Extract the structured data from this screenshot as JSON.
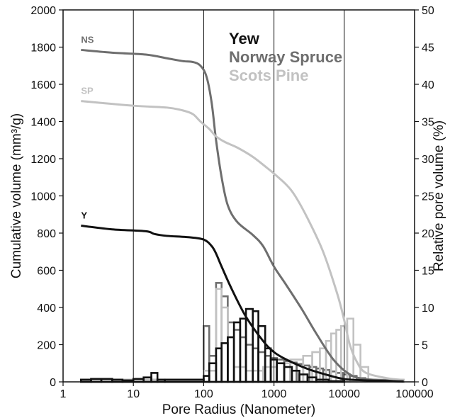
{
  "chart_data": {
    "type": "line",
    "xlabel": "Pore Radius (Nanometer)",
    "ylabel": "Cumulative volume (mm³/g)",
    "y2label": "Relative pore volume (%)",
    "xscale": "log",
    "xlim": [
      1,
      100000
    ],
    "ylim": [
      0,
      2000
    ],
    "y2lim": [
      0,
      50
    ],
    "x_ticks": [
      "1",
      "10",
      "100",
      "1000",
      "10000",
      "100000"
    ],
    "y_ticks": [
      "0",
      "200",
      "400",
      "600",
      "800",
      "1000",
      "1200",
      "1400",
      "1600",
      "1800",
      "2000"
    ],
    "y2_ticks": [
      "0",
      "5",
      "10",
      "15",
      "20",
      "25",
      "30",
      "35",
      "40",
      "45",
      "50"
    ],
    "grid": "vertical lines at 10, 100, 1000, 10000",
    "legend": {
      "position": "top-right",
      "entries": [
        {
          "label": "Yew",
          "color": "#111111"
        },
        {
          "label": "Norway Spruce",
          "color": "#6e6e6e"
        },
        {
          "label": "Scots Pine",
          "color": "#c2c2c2"
        }
      ]
    },
    "curves": [
      {
        "label": "NS",
        "color": "#6e6e6e",
        "x": [
          1.8,
          5,
          15,
          30,
          50,
          70,
          90,
          110,
          130,
          150,
          180,
          220,
          300,
          500,
          700,
          1000,
          1500,
          2500,
          4000,
          7000,
          12000,
          20000,
          50000,
          70000
        ],
        "y": [
          1785,
          1770,
          1760,
          1740,
          1725,
          1720,
          1700,
          1640,
          1500,
          1300,
          1100,
          950,
          860,
          790,
          730,
          620,
          520,
          390,
          260,
          120,
          40,
          15,
          8,
          5
        ]
      },
      {
        "label": "SP",
        "color": "#c2c2c2",
        "x": [
          1.8,
          10,
          30,
          50,
          70,
          90,
          120,
          150,
          200,
          300,
          500,
          800,
          1000,
          1500,
          2000,
          3000,
          5000,
          8000,
          10000,
          12000,
          15000,
          20000,
          40000,
          70000
        ],
        "y": [
          1510,
          1485,
          1475,
          1460,
          1440,
          1400,
          1360,
          1320,
          1290,
          1260,
          1210,
          1150,
          1120,
          1060,
          1000,
          880,
          700,
          470,
          330,
          200,
          110,
          50,
          20,
          10
        ]
      },
      {
        "label": "Y",
        "color": "#111111",
        "x": [
          1.8,
          5,
          15,
          20,
          30,
          60,
          100,
          130,
          150,
          180,
          250,
          400,
          700,
          1000,
          1500,
          3000,
          6000,
          10000,
          20000,
          50000,
          70000
        ],
        "y": [
          840,
          820,
          810,
          795,
          785,
          778,
          765,
          730,
          690,
          620,
          500,
          350,
          220,
          160,
          120,
          70,
          35,
          15,
          8,
          4,
          2
        ]
      }
    ],
    "histograms": [
      {
        "series": "Norway Spruce",
        "color": "#6e6e6e",
        "bins": [
          {
            "x0": 1.8,
            "x1": 100,
            "y": 0.3
          },
          {
            "x0": 100,
            "x1": 120,
            "y": 7.5
          },
          {
            "x0": 120,
            "x1": 150,
            "y": 3.5
          },
          {
            "x0": 150,
            "x1": 180,
            "y": 13.3
          },
          {
            "x0": 180,
            "x1": 220,
            "y": 11.5
          },
          {
            "x0": 220,
            "x1": 270,
            "y": 8.0
          },
          {
            "x0": 270,
            "x1": 330,
            "y": 7.0
          },
          {
            "x0": 330,
            "x1": 400,
            "y": 6.0
          },
          {
            "x0": 400,
            "x1": 500,
            "y": 5.0
          },
          {
            "x0": 500,
            "x1": 600,
            "y": 4.5
          },
          {
            "x0": 600,
            "x1": 750,
            "y": 4.0
          },
          {
            "x0": 750,
            "x1": 900,
            "y": 3.5
          },
          {
            "x0": 900,
            "x1": 1100,
            "y": 3.2
          },
          {
            "x0": 1100,
            "x1": 1400,
            "y": 3.0
          },
          {
            "x0": 1400,
            "x1": 1700,
            "y": 2.8
          },
          {
            "x0": 1700,
            "x1": 2100,
            "y": 2.6
          },
          {
            "x0": 2100,
            "x1": 2600,
            "y": 2.4
          },
          {
            "x0": 2600,
            "x1": 3200,
            "y": 2.2
          },
          {
            "x0": 3200,
            "x1": 4000,
            "y": 2.0
          },
          {
            "x0": 4000,
            "x1": 5000,
            "y": 1.8
          },
          {
            "x0": 5000,
            "x1": 6200,
            "y": 1.6
          },
          {
            "x0": 6200,
            "x1": 7700,
            "y": 1.4
          },
          {
            "x0": 7700,
            "x1": 9500,
            "y": 1.2
          },
          {
            "x0": 9500,
            "x1": 12000,
            "y": 1.0
          },
          {
            "x0": 12000,
            "x1": 15000,
            "y": 0.8
          },
          {
            "x0": 15000,
            "x1": 20000,
            "y": 0.5
          },
          {
            "x0": 20000,
            "x1": 70000,
            "y": 0.2
          }
        ]
      },
      {
        "series": "Scots Pine",
        "color": "#c2c2c2",
        "bins": [
          {
            "x0": 1.8,
            "x1": 100,
            "y": 0.3
          },
          {
            "x0": 100,
            "x1": 150,
            "y": 1.5
          },
          {
            "x0": 150,
            "x1": 180,
            "y": 12.5
          },
          {
            "x0": 180,
            "x1": 220,
            "y": 10.0
          },
          {
            "x0": 220,
            "x1": 270,
            "y": 6.0
          },
          {
            "x0": 270,
            "x1": 400,
            "y": 2.0
          },
          {
            "x0": 400,
            "x1": 700,
            "y": 1.5
          },
          {
            "x0": 700,
            "x1": 1100,
            "y": 2.0
          },
          {
            "x0": 1100,
            "x1": 1700,
            "y": 2.5
          },
          {
            "x0": 1700,
            "x1": 2600,
            "y": 3.0
          },
          {
            "x0": 2600,
            "x1": 3500,
            "y": 3.5
          },
          {
            "x0": 3500,
            "x1": 4500,
            "y": 4.0
          },
          {
            "x0": 4500,
            "x1": 5500,
            "y": 4.5
          },
          {
            "x0": 5500,
            "x1": 6500,
            "y": 5.5
          },
          {
            "x0": 6500,
            "x1": 7700,
            "y": 6.5
          },
          {
            "x0": 7700,
            "x1": 9000,
            "y": 7.0
          },
          {
            "x0": 9000,
            "x1": 11000,
            "y": 7.5
          },
          {
            "x0": 11000,
            "x1": 13500,
            "y": 8.5
          },
          {
            "x0": 13500,
            "x1": 17000,
            "y": 5.0
          },
          {
            "x0": 17000,
            "x1": 22000,
            "y": 2.0
          },
          {
            "x0": 22000,
            "x1": 70000,
            "y": 0.3
          }
        ]
      },
      {
        "series": "Yew",
        "color": "#111111",
        "bins": [
          {
            "x0": 1.8,
            "x1": 2.5,
            "y": 0.3
          },
          {
            "x0": 2.5,
            "x1": 3.5,
            "y": 0.4
          },
          {
            "x0": 3.5,
            "x1": 5,
            "y": 0.4
          },
          {
            "x0": 5,
            "x1": 7,
            "y": 0.3
          },
          {
            "x0": 7,
            "x1": 10,
            "y": 0.2
          },
          {
            "x0": 10,
            "x1": 14,
            "y": 0.4
          },
          {
            "x0": 14,
            "x1": 18,
            "y": 0.6
          },
          {
            "x0": 18,
            "x1": 22,
            "y": 1.2
          },
          {
            "x0": 22,
            "x1": 28,
            "y": 0.3
          },
          {
            "x0": 28,
            "x1": 100,
            "y": 0.3
          },
          {
            "x0": 100,
            "x1": 120,
            "y": 0.8
          },
          {
            "x0": 120,
            "x1": 150,
            "y": 2.5
          },
          {
            "x0": 150,
            "x1": 180,
            "y": 4.5
          },
          {
            "x0": 180,
            "x1": 220,
            "y": 5.2
          },
          {
            "x0": 220,
            "x1": 270,
            "y": 6.0
          },
          {
            "x0": 270,
            "x1": 330,
            "y": 8.0
          },
          {
            "x0": 330,
            "x1": 400,
            "y": 8.5
          },
          {
            "x0": 400,
            "x1": 500,
            "y": 9.8
          },
          {
            "x0": 500,
            "x1": 600,
            "y": 9.5
          },
          {
            "x0": 600,
            "x1": 750,
            "y": 7.5
          },
          {
            "x0": 750,
            "x1": 900,
            "y": 4.5
          },
          {
            "x0": 900,
            "x1": 1100,
            "y": 3.0
          },
          {
            "x0": 1100,
            "x1": 1400,
            "y": 2.5
          },
          {
            "x0": 1400,
            "x1": 1800,
            "y": 2.0
          },
          {
            "x0": 1800,
            "x1": 2300,
            "y": 1.5
          },
          {
            "x0": 2300,
            "x1": 3000,
            "y": 1.0
          },
          {
            "x0": 3000,
            "x1": 4000,
            "y": 0.6
          },
          {
            "x0": 4000,
            "x1": 6000,
            "y": 0.3
          },
          {
            "x0": 6000,
            "x1": 10000,
            "y": 0.1
          }
        ]
      }
    ]
  }
}
